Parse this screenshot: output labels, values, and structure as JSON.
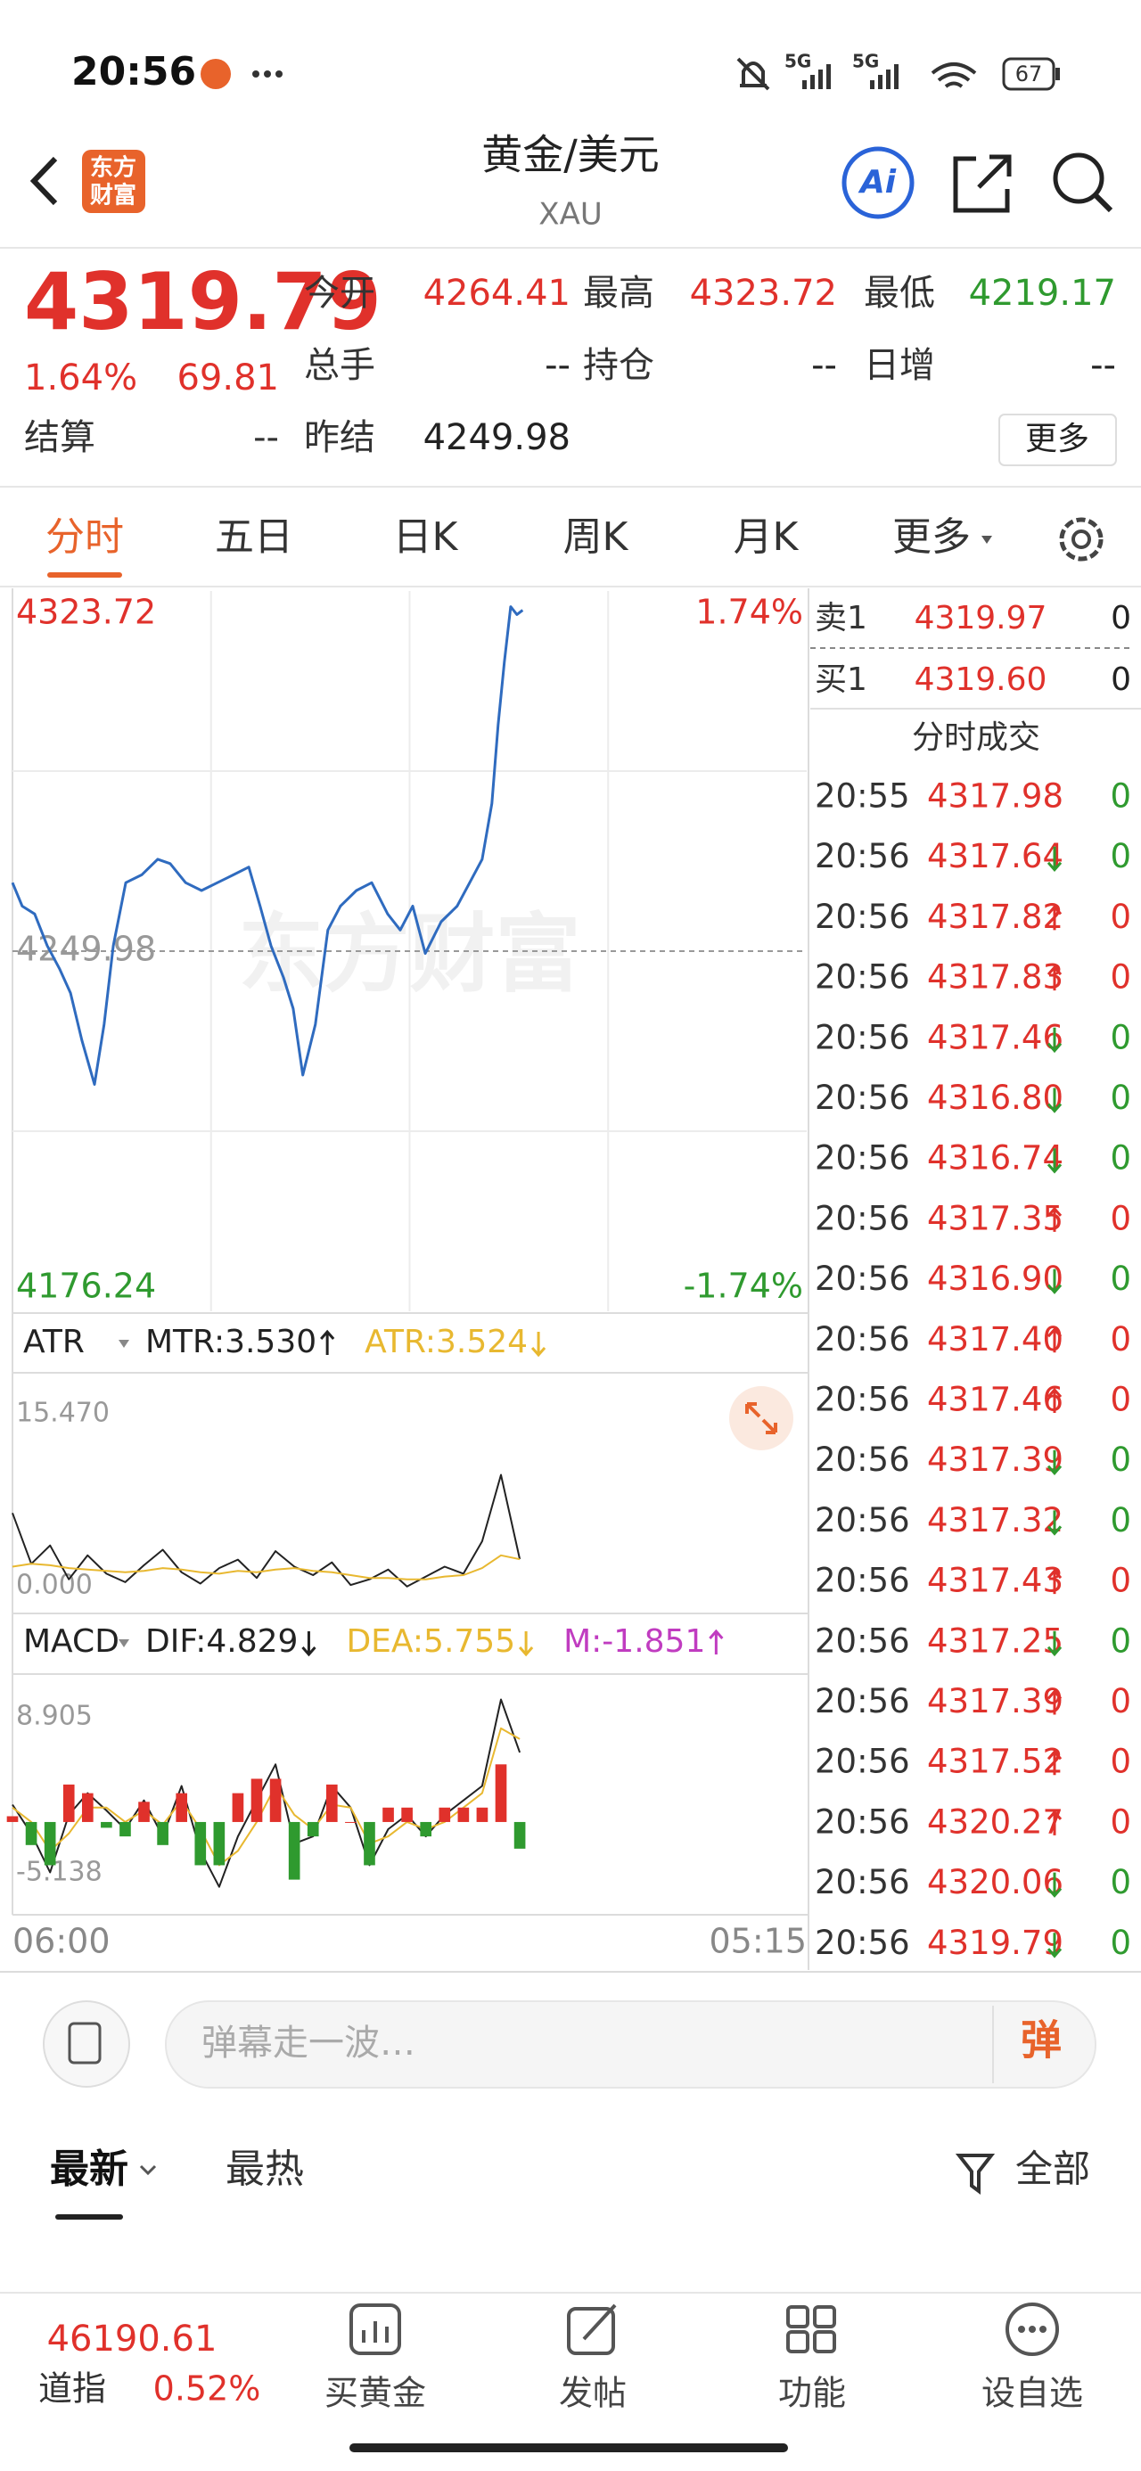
{
  "colors": {
    "up": "#e0312b",
    "down": "#2f9a2f",
    "accent": "#e8632b"
  },
  "status_bar": {
    "time": "20:56",
    "network": [
      "5G",
      "5G"
    ],
    "battery": "67"
  },
  "header": {
    "logo": [
      "东方",
      "财富"
    ],
    "title": "黄金/美元",
    "subtitle": "XAU",
    "ai": "Ai"
  },
  "quote": {
    "price": "4319.79",
    "price_color": "up",
    "change_pct": "1.64%",
    "change": "69.81",
    "settle": {
      "label": "结算",
      "value": "--"
    },
    "fields": [
      {
        "label": "今开",
        "value": "4264.41",
        "color": "up"
      },
      {
        "label": "最高",
        "value": "4323.72",
        "color": "up"
      },
      {
        "label": "最低",
        "value": "4219.17",
        "color": "down"
      },
      {
        "label": "总手",
        "value": "--",
        "color": null
      },
      {
        "label": "持仓",
        "value": "--",
        "color": null
      },
      {
        "label": "日增",
        "value": "--",
        "color": null
      },
      {
        "label": "昨结",
        "value": "4249.98",
        "color": null
      }
    ],
    "more": "更多"
  },
  "tabs": {
    "items": [
      "分时",
      "五日",
      "日K",
      "周K",
      "月K",
      "更多"
    ],
    "active": 0
  },
  "chart_data": [
    {
      "type": "line",
      "watermark": "东方财富",
      "x": [
        0,
        17,
        39,
        61,
        83,
        102,
        122,
        144,
        161,
        177,
        199,
        227,
        255,
        277,
        304,
        332,
        360,
        388,
        415,
        435,
        454,
        476,
        493,
        510,
        532,
        554,
        576,
        604,
        631,
        659,
        681,
        703,
        725,
        753,
        781,
        803,
        825,
        842,
        853,
        864,
        875,
        886,
        896
      ],
      "series": [
        {
          "color": "#2f6bbf",
          "values": [
            4264.0,
            4259.2,
            4257.6,
            4251.1,
            4246.3,
            4241.4,
            4231.7,
            4222.7,
            4235.0,
            4251.1,
            4264.0,
            4265.6,
            4268.8,
            4267.9,
            4264.0,
            4262.4,
            4264.0,
            4265.6,
            4267.2,
            4259.2,
            4251.1,
            4244.6,
            4238.2,
            4224.6,
            4235.0,
            4254.3,
            4259.2,
            4262.4,
            4264.0,
            4257.6,
            4254.3,
            4259.2,
            4249.5,
            4256.0,
            4259.2,
            4264.0,
            4268.8,
            4280.2,
            4296.3,
            4309.2,
            4320.5,
            4318.9,
            4319.79
          ]
        }
      ],
      "xlim": [
        0,
        1395
      ],
      "xticks": [
        {
          "value": 0,
          "label": "06:00"
        },
        {
          "value": 1395,
          "label": "05:15"
        }
      ],
      "ylim": [
        4176.24,
        4323.72
      ],
      "yticks": [
        4323.72,
        4249.98,
        4176.24
      ],
      "y2lim": [
        -1.74,
        1.74
      ],
      "y2ticks": [
        {
          "value": 1.74,
          "label": "1.74%"
        },
        {
          "value": -1.74,
          "label": "-1.74%"
        }
      ],
      "grid": true
    },
    {
      "type": "line",
      "indicator": "ATR",
      "x": [
        0,
        33,
        66,
        99,
        132,
        165,
        198,
        231,
        264,
        297,
        330,
        363,
        396,
        429,
        462,
        495,
        528,
        561,
        594,
        627,
        660,
        693,
        726,
        759,
        792,
        825,
        858,
        891
      ],
      "series": [
        {
          "name": "MTR:3.530",
          "color": "#222222",
          "trend": "up",
          "values": [
            6.8,
            3.2,
            4.5,
            2.1,
            3.8,
            2.5,
            1.9,
            3.1,
            4.2,
            2.6,
            1.8,
            2.9,
            3.5,
            2.2,
            4.1,
            3.0,
            2.4,
            3.3,
            1.7,
            2.1,
            2.8,
            1.6,
            2.3,
            3.0,
            2.5,
            4.8,
            9.5,
            3.53
          ]
        },
        {
          "name": "ATR:3.524",
          "color": "#e8b830",
          "trend": "down",
          "values": [
            3.0,
            3.2,
            3.1,
            2.9,
            2.8,
            2.7,
            2.6,
            2.7,
            2.9,
            2.8,
            2.6,
            2.5,
            2.7,
            2.6,
            2.8,
            2.9,
            2.7,
            2.6,
            2.4,
            2.2,
            2.2,
            2.1,
            2.1,
            2.3,
            2.4,
            2.9,
            3.8,
            3.524
          ]
        }
      ],
      "xlim": [
        0,
        1395
      ],
      "ylim": [
        0,
        15.47
      ],
      "yticks": [
        {
          "value": 15.47,
          "label": "15.470"
        },
        {
          "value": 0,
          "label": "0.000"
        }
      ]
    },
    {
      "type": "macd",
      "indicator": "MACD",
      "x": [
        0,
        33,
        66,
        99,
        132,
        165,
        198,
        231,
        264,
        297,
        330,
        363,
        396,
        429,
        462,
        495,
        528,
        561,
        594,
        627,
        660,
        693,
        726,
        759,
        792,
        825,
        858,
        891
      ],
      "series": [
        {
          "name": "DIF:4.829",
          "color": "#222222",
          "trend": "down",
          "values": [
            1.2,
            -0.8,
            -3.5,
            0.5,
            2.0,
            0.8,
            -0.5,
            1.5,
            -1.0,
            2.5,
            -2.0,
            -4.5,
            -1.0,
            1.5,
            4.0,
            -1.5,
            -1.0,
            2.5,
            1.0,
            -3.0,
            -0.5,
            0.5,
            -1.0,
            0.5,
            1.5,
            2.5,
            8.5,
            4.829
          ]
        },
        {
          "name": "DEA:5.755",
          "color": "#e8b830",
          "trend": "down",
          "values": [
            1.0,
            0.0,
            -2.0,
            -0.8,
            1.0,
            1.0,
            0.0,
            0.8,
            -0.2,
            1.5,
            -0.5,
            -3.0,
            -2.0,
            0.0,
            2.5,
            0.5,
            -0.5,
            1.2,
            1.0,
            -1.5,
            -1.0,
            0.0,
            -0.5,
            0.0,
            1.0,
            2.0,
            6.5,
            5.755
          ]
        },
        {
          "name": "M:-1.851",
          "color": "#c03cc0",
          "trend": "up",
          "bars": true,
          "values": [
            0.4,
            -1.6,
            -3.0,
            2.6,
            2.0,
            -0.4,
            -1.0,
            1.4,
            -1.6,
            2.0,
            -3.0,
            -3.0,
            2.0,
            3.0,
            3.0,
            -4.0,
            -1.0,
            2.6,
            0.0,
            -3.0,
            1.0,
            1.0,
            -1.0,
            1.0,
            1.0,
            1.0,
            4.0,
            -1.851
          ]
        }
      ],
      "xlim": [
        0,
        1395
      ],
      "ylim": [
        -5.138,
        8.905
      ],
      "yticks": [
        8.905,
        -5.138
      ]
    }
  ],
  "order_book": [
    {
      "side": "卖1",
      "price": "4319.97",
      "volume": "0"
    },
    {
      "side": "买1",
      "price": "4319.60",
      "volume": "0"
    }
  ],
  "trades_title": "分时成交",
  "trades": [
    {
      "time": "20:55",
      "price": "4317.98",
      "volume": "0",
      "dir": null
    },
    {
      "time": "20:56",
      "price": "4317.64",
      "volume": "0",
      "dir": "down"
    },
    {
      "time": "20:56",
      "price": "4317.82",
      "volume": "0",
      "dir": "up"
    },
    {
      "time": "20:56",
      "price": "4317.83",
      "volume": "0",
      "dir": "up"
    },
    {
      "time": "20:56",
      "price": "4317.46",
      "volume": "0",
      "dir": "down"
    },
    {
      "time": "20:56",
      "price": "4316.80",
      "volume": "0",
      "dir": "down"
    },
    {
      "time": "20:56",
      "price": "4316.74",
      "volume": "0",
      "dir": "down"
    },
    {
      "time": "20:56",
      "price": "4317.35",
      "volume": "0",
      "dir": "up"
    },
    {
      "time": "20:56",
      "price": "4316.90",
      "volume": "0",
      "dir": "down"
    },
    {
      "time": "20:56",
      "price": "4317.40",
      "volume": "0",
      "dir": "up"
    },
    {
      "time": "20:56",
      "price": "4317.46",
      "volume": "0",
      "dir": "up"
    },
    {
      "time": "20:56",
      "price": "4317.39",
      "volume": "0",
      "dir": "down"
    },
    {
      "time": "20:56",
      "price": "4317.32",
      "volume": "0",
      "dir": "down"
    },
    {
      "time": "20:56",
      "price": "4317.43",
      "volume": "0",
      "dir": "up"
    },
    {
      "time": "20:56",
      "price": "4317.25",
      "volume": "0",
      "dir": "down"
    },
    {
      "time": "20:56",
      "price": "4317.39",
      "volume": "0",
      "dir": "up"
    },
    {
      "time": "20:56",
      "price": "4317.52",
      "volume": "0",
      "dir": "up"
    },
    {
      "time": "20:56",
      "price": "4320.27",
      "volume": "0",
      "dir": "up"
    },
    {
      "time": "20:56",
      "price": "4320.06",
      "volume": "0",
      "dir": "down"
    },
    {
      "time": "20:56",
      "price": "4319.79",
      "volume": "0",
      "dir": "down"
    }
  ],
  "comment": {
    "placeholder": "弹幕走一波…",
    "button": "弹"
  },
  "feed_tabs": {
    "items": [
      "最新",
      "最热"
    ],
    "active": 0,
    "filter": "全部"
  },
  "bottom_nav": {
    "index_value": "46190.61",
    "index_name": "道指",
    "index_change": "0.52%",
    "items": [
      "买黄金",
      "发帖",
      "功能",
      "设自选"
    ]
  }
}
